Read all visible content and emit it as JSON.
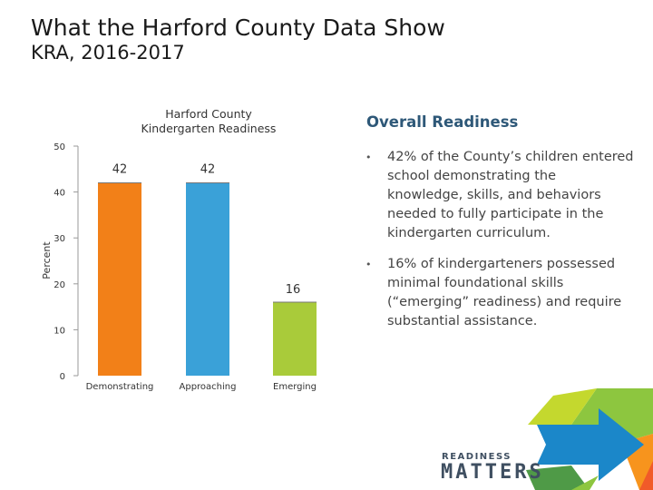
{
  "slide": {
    "title": "What the Harford County Data Show",
    "subtitle": "KRA, 2016-2017"
  },
  "chart_data": {
    "type": "bar",
    "title_line1": "Harford County",
    "title_line2": "Kindergarten Readiness",
    "ylabel": "Percent",
    "xlabel": "",
    "categories": [
      "Demonstrating",
      "Approaching",
      "Emerging"
    ],
    "values": [
      42,
      42,
      16
    ],
    "data_labels": [
      "42",
      "42",
      "16"
    ],
    "colors": [
      "#f28018",
      "#3aa1d8",
      "#a9cb3a"
    ],
    "ylim": [
      0,
      50
    ],
    "yticks": [
      "0",
      "10",
      "20",
      "30",
      "40",
      "50"
    ],
    "grid": false,
    "legend": "none"
  },
  "side_panel": {
    "heading": "Overall Readiness",
    "bullets": [
      "42% of the County’s children entered school demonstrating the knowledge, skills, and behaviors needed to fully participate in the kindergarten curriculum.",
      "16% of kindergarteners possessed minimal foundational skills (“emerging” readiness) and require substantial assistance."
    ]
  },
  "logo": {
    "line1": "READINESS",
    "line2": "MATTERS",
    "colors": [
      "#1b87c9",
      "#8dc63f",
      "#f7941d",
      "#f15a29",
      "#c4d82e",
      "#4f9a47"
    ]
  }
}
